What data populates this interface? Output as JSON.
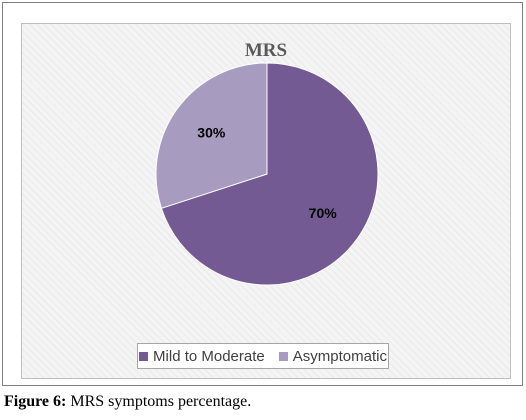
{
  "chart_data": {
    "type": "pie",
    "title": "MRS",
    "categories": [
      "Mild to Moderate",
      "Asymptomatic"
    ],
    "values": [
      70,
      30
    ],
    "labels": [
      "70%",
      "30%"
    ],
    "colors": [
      "#735a93",
      "#a79bbf"
    ],
    "legend_position": "bottom"
  },
  "caption": {
    "label": "Figure 6:",
    "text": "MRS symptoms percentage."
  }
}
